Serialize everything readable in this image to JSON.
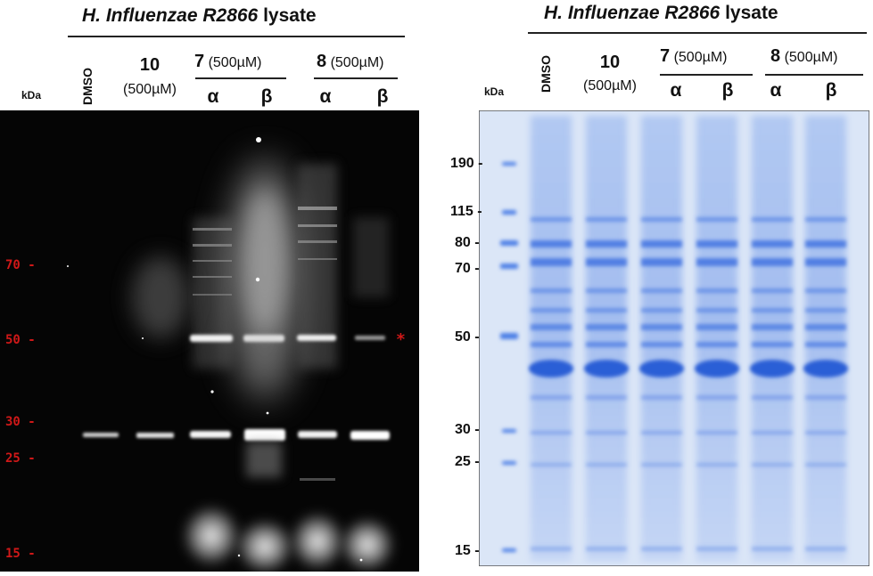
{
  "left_panel": {
    "title_species": "H. Influenzae R2866",
    "title_suffix": " lysate",
    "ladder_unit": "kDa",
    "lanes": {
      "dmso": "DMSO",
      "cmpd10": "10",
      "cmpd10_conc": "(500µM)",
      "cmpd7": "7",
      "cmpd7_conc": "(500µM)",
      "cmpd8": "8",
      "cmpd8_conc": "(500µM)",
      "alpha": "α",
      "beta": "β"
    },
    "markers": [
      "70 -",
      "50 -",
      "30 -",
      "25 -",
      "15 -"
    ],
    "asterisk": "*",
    "colors": {
      "background": "#050505",
      "marker_text": "#d01818"
    }
  },
  "right_panel": {
    "title_species": "H. Influenzae R2866",
    "title_suffix": " lysate",
    "ladder_unit": "kDa",
    "lanes": {
      "dmso": "DMSO",
      "cmpd10": "10",
      "cmpd10_conc": "(500µM)",
      "cmpd7": "7",
      "cmpd7_conc": "(500µM)",
      "cmpd8": "8",
      "cmpd8_conc": "(500µM)",
      "alpha": "α",
      "beta": "β"
    },
    "markers": [
      "190 -",
      "115 -",
      "80 -",
      "70 -",
      "50 -",
      "30 -",
      "25 -",
      "15 -"
    ],
    "colors": {
      "background": "#dbe6f7",
      "band": "#3c6fe0"
    }
  }
}
